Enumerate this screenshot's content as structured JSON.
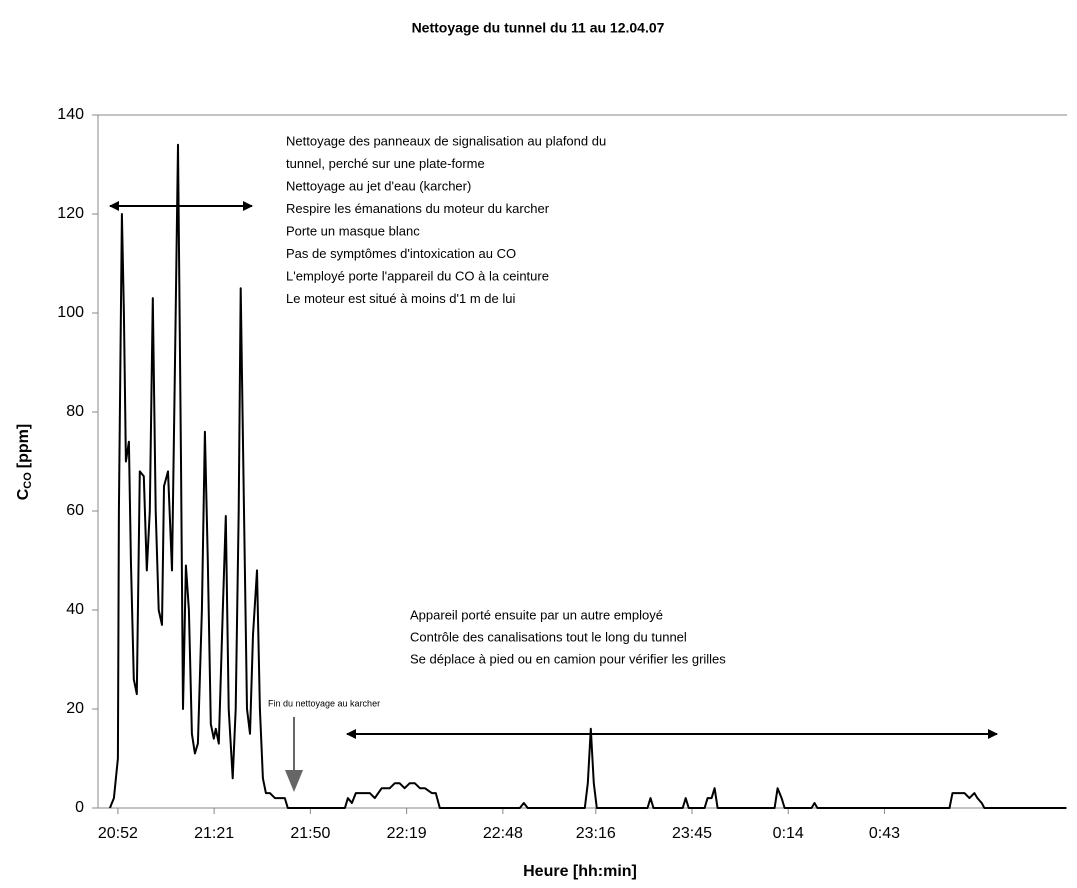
{
  "chart_data": {
    "type": "line",
    "title": "Nettoyage du tunnel du 11 au 12.04.07",
    "xlabel": "Heure [hh:min]",
    "ylabel": {
      "main": "C",
      "sub": "CO",
      "unit": "[ppm]"
    },
    "annotations": [
      {
        "lines": [
          "Nettoyage des panneaux de signalisation au plafond du",
          "tunnel, perché sur une plate-forme",
          "Nettoyage au jet d'eau (karcher)",
          "Respire les émanations du moteur du karcher",
          "Porte un masque blanc",
          "Pas de symptômes d'intoxication au CO",
          "L'employé porte l'appareil du CO à la ceinture",
          "Le moteur est situé à moins d'1 m de lui"
        ]
      },
      {
        "lines": [
          "Appareil porté ensuite par un autre employé",
          "Contrôle des canalisations tout le long du tunnel",
          "Se déplace  à pied ou en camion pour vérifier les grilles"
        ]
      },
      {
        "lines": [
          "Fin du nettoyage au karcher"
        ]
      }
    ],
    "xlim": [
      1246,
      1538
    ],
    "xticks": [
      {
        "value": 1252,
        "label": "20:52"
      },
      {
        "value": 1281,
        "label": "21:21"
      },
      {
        "value": 1310,
        "label": "21:50"
      },
      {
        "value": 1339,
        "label": "22:19"
      },
      {
        "value": 1368,
        "label": "22:48"
      },
      {
        "value": 1396,
        "label": "23:16"
      },
      {
        "value": 1425,
        "label": "23:45"
      },
      {
        "value": 1454,
        "label": "0:14"
      },
      {
        "value": 1483,
        "label": "0:43"
      }
    ],
    "ylim": [
      0,
      140
    ],
    "yticks": [
      0,
      20,
      40,
      60,
      80,
      100,
      120,
      140
    ],
    "x": [
      1249.6,
      1250.8,
      1252.0,
      1252.3,
      1253.2,
      1253.8,
      1254.4,
      1255.3,
      1255.9,
      1256.8,
      1257.7,
      1258.6,
      1259.8,
      1260.7,
      1261.6,
      1262.5,
      1263.4,
      1264.3,
      1265.3,
      1265.9,
      1267.1,
      1268.3,
      1269.2,
      1270.1,
      1271.0,
      1271.6,
      1272.5,
      1273.4,
      1274.3,
      1275.2,
      1276.1,
      1277.3,
      1278.2,
      1279.1,
      1280.0,
      1280.9,
      1281.5,
      1282.4,
      1283.6,
      1284.5,
      1285.4,
      1286.6,
      1287.5,
      1288.4,
      1289.0,
      1290.0,
      1290.9,
      1291.8,
      1292.7,
      1293.9,
      1294.8,
      1295.7,
      1296.6,
      1297.8,
      1299.3,
      1302.3,
      1303.2,
      1320.4,
      1321.3,
      1322.5,
      1323.7,
      1325.5,
      1327.9,
      1329.4,
      1331.5,
      1333.9,
      1335.4,
      1336.9,
      1338.4,
      1339.9,
      1341.5,
      1343.0,
      1344.5,
      1346.6,
      1347.8,
      1349.0,
      1373.1,
      1374.3,
      1375.5,
      1392.7,
      1393.6,
      1394.5,
      1395.4,
      1396.3,
      1411.6,
      1412.5,
      1413.4,
      1422.2,
      1423.1,
      1424.0,
      1428.8,
      1429.7,
      1430.9,
      1431.8,
      1432.7,
      1449.9,
      1450.8,
      1452.0,
      1452.9,
      1461.0,
      1461.9,
      1462.8,
      1502.6,
      1503.5,
      1507.1,
      1508.6,
      1510.1,
      1511.0,
      1512.3,
      1513.1,
      1537.8
    ],
    "series": [
      {
        "color": "#000000",
        "values": [
          0,
          2,
          10,
          60,
          120,
          100,
          70,
          74,
          50,
          26,
          23,
          68,
          67,
          48,
          60,
          103,
          60,
          40,
          37,
          65,
          68,
          48,
          90,
          134,
          70,
          20,
          49,
          40,
          15,
          11,
          13,
          40,
          76,
          50,
          17,
          14,
          16,
          13,
          40,
          59,
          20,
          6,
          20,
          60,
          105,
          60,
          20,
          15,
          35,
          48,
          20,
          6,
          3,
          3,
          2,
          2,
          0,
          0,
          2,
          1,
          3,
          3,
          3,
          2,
          4,
          4,
          5,
          5,
          4,
          5,
          5,
          4,
          4,
          3,
          3,
          0,
          0,
          1,
          0,
          0,
          5,
          16,
          5,
          0,
          0,
          2,
          0,
          0,
          2,
          0,
          0,
          2,
          2,
          4,
          0,
          0,
          4,
          2,
          0,
          0,
          1,
          0,
          0,
          3,
          3,
          2,
          3,
          2,
          1,
          0,
          0
        ]
      }
    ]
  }
}
